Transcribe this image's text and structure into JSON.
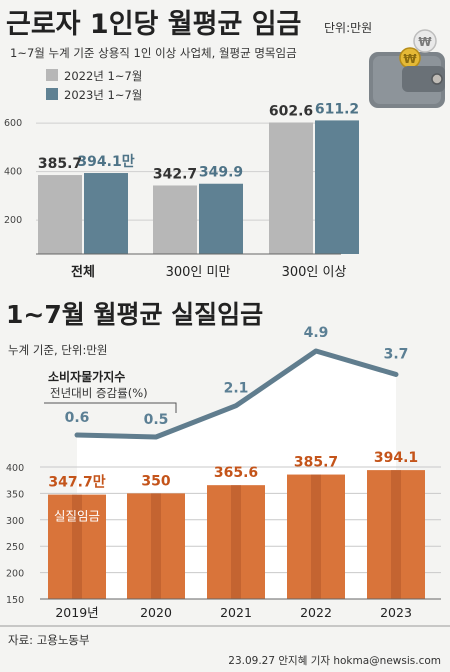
{
  "chart_data": [
    {
      "type": "bar",
      "title": "근로자 1인당 월평균 임금",
      "unit": "단위:만원",
      "subtitle": "1~7월 누계 기준 상용직 1인 이상 사업체, 월평균 명목임금",
      "categories": [
        "전체",
        "300인 미만",
        "300인 이상"
      ],
      "series": [
        {
          "name": "2022년 1~7월",
          "values": [
            385.7,
            342.7,
            602.6
          ],
          "labels": [
            "385.7",
            "342.7",
            "602.6"
          ],
          "color": "#b7b7b7"
        },
        {
          "name": "2023년 1~7월",
          "values": [
            394.1,
            349.9,
            611.2
          ],
          "labels": [
            "394.1만",
            "349.9",
            "611.2"
          ],
          "color": "#5f8193"
        }
      ],
      "yticks": [
        "200",
        "400",
        "600"
      ],
      "ylim": [
        60,
        650
      ],
      "legend": "top-left"
    },
    {
      "type": "bar",
      "title": "1~7월 월평균 실질임금",
      "subtitle": "누계 기준, 단위:만원",
      "series_label": "실질임금",
      "categories": [
        "2019년",
        "2020",
        "2021",
        "2022",
        "2023"
      ],
      "values": [
        347.7,
        350,
        365.6,
        385.7,
        394.1
      ],
      "labels": [
        "347.7만",
        "350",
        "365.6",
        "385.7",
        "394.1"
      ],
      "yticks": [
        "150",
        "200",
        "250",
        "300",
        "350",
        "400"
      ],
      "ylim": [
        150,
        400
      ],
      "bar_color": "#d9743a"
    },
    {
      "type": "line",
      "name": "소비자물가지수",
      "note": "전년대비 증감률(%)",
      "x": [
        "2019년",
        "2020",
        "2021",
        "2022",
        "2023"
      ],
      "values": [
        0.6,
        0.5,
        2.1,
        4.9,
        3.7
      ],
      "labels": [
        "0.6",
        "0.5",
        "2.1",
        "4.9",
        "3.7"
      ],
      "color": "#5b7f94"
    }
  ],
  "footer": {
    "source": "자료: 고용노동부",
    "credit": "23.09.27 안지혜 기자 hokma@newsis.com"
  }
}
